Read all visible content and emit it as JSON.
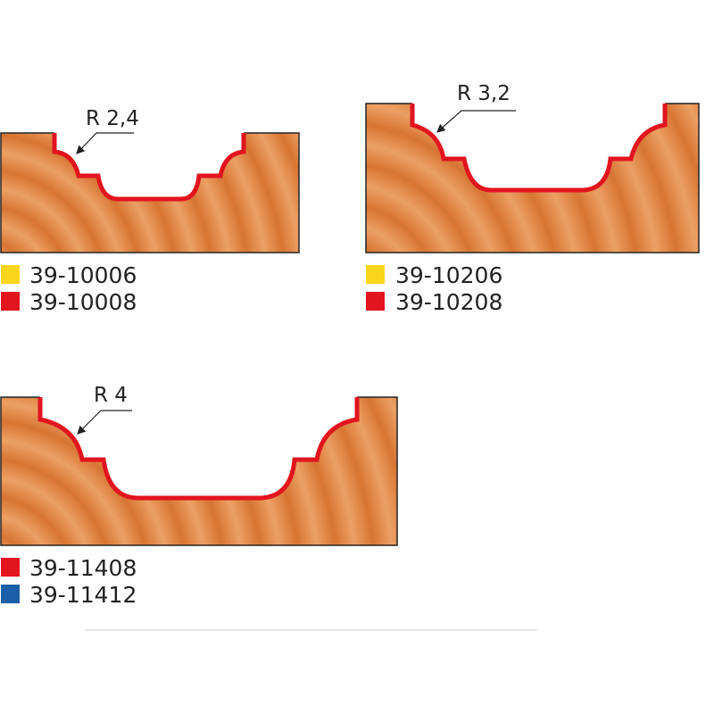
{
  "colors": {
    "wood_light": "#eca064",
    "wood_dark": "#cf6a2c",
    "profile_edge": "#e2141e",
    "yellow": "#fbd51a",
    "red": "#e2141e",
    "blue": "#1a5fa8",
    "divider": "#dddddd"
  },
  "profiles": [
    {
      "radius_label": "R 2,4",
      "codes": [
        {
          "code": "39-10006",
          "color": "yellow"
        },
        {
          "code": "39-10008",
          "color": "red"
        }
      ]
    },
    {
      "radius_label": "R 3,2",
      "codes": [
        {
          "code": "39-10206",
          "color": "yellow"
        },
        {
          "code": "39-10208",
          "color": "red"
        }
      ]
    },
    {
      "radius_label": "R 4",
      "codes": [
        {
          "code": "39-11408",
          "color": "red"
        },
        {
          "code": "39-11412",
          "color": "blue"
        }
      ]
    }
  ]
}
